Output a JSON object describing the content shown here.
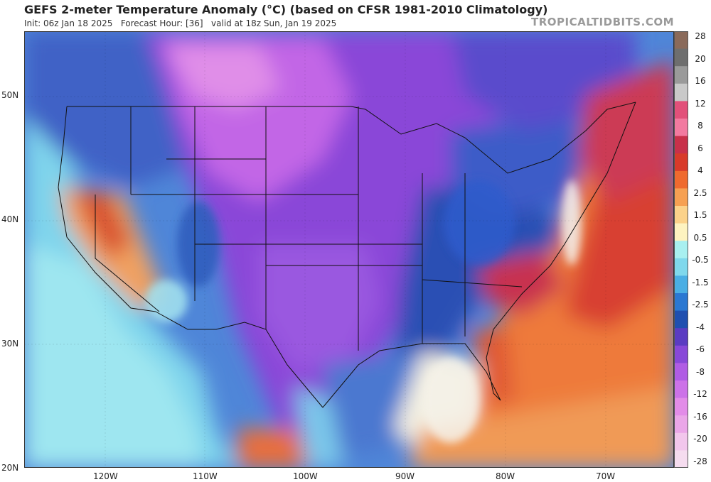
{
  "header": {
    "title": "GEFS 2-meter Temperature Anomaly (°C) (based on CFSR 1981-2010 Climatology)",
    "init": "Init: 06z Jan 18 2025",
    "forecast_hour": "Forecast Hour: [36]",
    "valid": "valid at 18z Sun, Jan 19 2025",
    "source": "TROPICALTIDBITS.COM"
  },
  "axes": {
    "latitude_labels": [
      "50N",
      "40N",
      "30N",
      "20N"
    ],
    "longitude_labels": [
      "120W",
      "110W",
      "100W",
      "90W",
      "80W",
      "70W"
    ]
  },
  "colorbar": {
    "labels": [
      "28",
      "20",
      "16",
      "12",
      "8",
      "6",
      "4",
      "2.5",
      "1.5",
      "0.5",
      "-0.5",
      "-1.5",
      "-2.5",
      "-4",
      "-6",
      "-8",
      "-12",
      "-16",
      "-20",
      "-28"
    ],
    "colors": [
      "#8a6a5a",
      "#6e6e6e",
      "#9a9a9a",
      "#c9c9c9",
      "#e2507a",
      "#f27aa0",
      "#c8304a",
      "#d83a2a",
      "#ef6a2e",
      "#f6a052",
      "#fbd28a",
      "#fdf3c0",
      "#a8f0f0",
      "#7fd8ec",
      "#4aaee4",
      "#2b78d2",
      "#1f4fb0",
      "#5a3cc2",
      "#8848d8",
      "#b05ce4",
      "#cc72e8",
      "#e28ce8",
      "#eaa6e8",
      "#f2c6ec",
      "#f5dcef"
    ]
  },
  "legend_colors": {
    "strong_cold": "#7a38c8",
    "cold": "#2e62cc",
    "cool": "#55c8e6",
    "neutral": "#f5f5f2",
    "warm": "#f08440",
    "hot": "#d6283a",
    "very_hot": "#d8507a"
  }
}
